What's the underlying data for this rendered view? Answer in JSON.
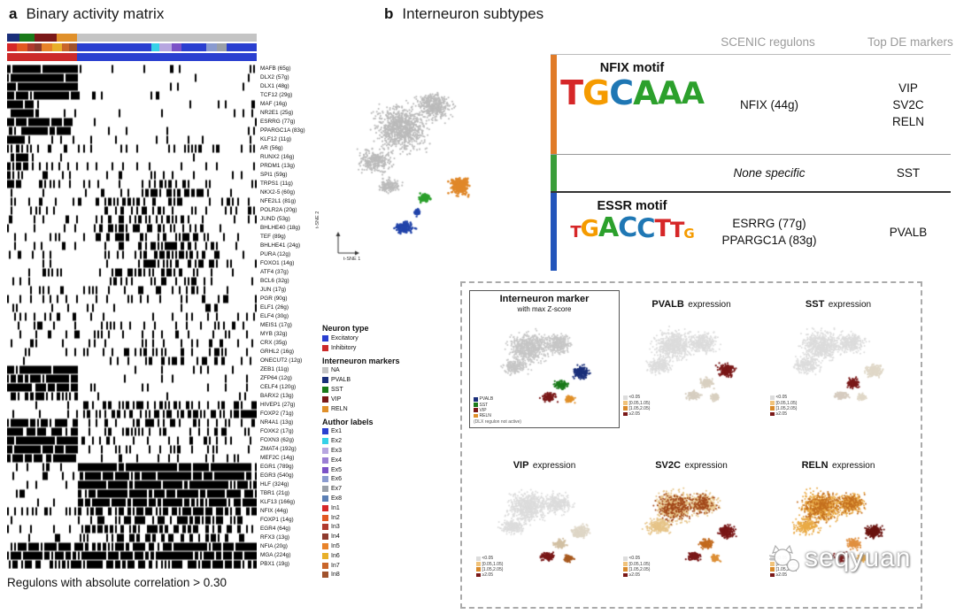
{
  "figure": {
    "watermark": "seqyuan"
  },
  "panel_a": {
    "label": "a",
    "title": "Binary activity matrix",
    "caption": "Regulons with absolute correlation > 0.30",
    "tracks": [
      {
        "name": "interneuron-markers",
        "segments": [
          [
            "#1a2f7a",
            5
          ],
          [
            "#1a7a1a",
            6
          ],
          [
            "#7a1818",
            9
          ],
          [
            "#e0902a",
            8
          ],
          [
            "#c4c4c4",
            72
          ]
        ]
      },
      {
        "name": "author-labels",
        "segments": [
          [
            "#d62728",
            4
          ],
          [
            "#e25822",
            4
          ],
          [
            "#b03a2e",
            3
          ],
          [
            "#8e3b2e",
            3
          ],
          [
            "#e8832a",
            4
          ],
          [
            "#e8b02a",
            4
          ],
          [
            "#c9652a",
            3
          ],
          [
            "#a0522d",
            3
          ],
          [
            "#2a3fd0",
            30
          ],
          [
            "#36d1e8",
            3
          ],
          [
            "#b7a6e0",
            5
          ],
          [
            "#7b52c7",
            4
          ],
          [
            "#2a3fd0",
            10
          ],
          [
            "#8a9bd0",
            4
          ],
          [
            "#9aa0a8",
            4
          ],
          [
            "#2a3fd0",
            12
          ]
        ]
      },
      {
        "name": "neuron-type",
        "segments": [
          [
            "#cc2a2a",
            28
          ],
          [
            "#2a3fd0",
            72
          ]
        ]
      }
    ],
    "rows": [
      {
        "l": "MAFB (65g)",
        "b": [
          [
            0,
            0.28,
            0.97
          ]
        ],
        "s": 0.06
      },
      {
        "l": "DLX2 (57g)",
        "b": [
          [
            0,
            0.28,
            0.97
          ]
        ],
        "s": 0.05
      },
      {
        "l": "DLX1 (48g)",
        "b": [
          [
            0,
            0.28,
            0.96
          ]
        ],
        "s": 0.05
      },
      {
        "l": "TCF12 (29g)",
        "b": [
          [
            0,
            0.28,
            0.9
          ]
        ],
        "s": 0.06
      },
      {
        "l": "MAF (16g)",
        "b": [
          [
            0,
            0.11,
            0.9
          ]
        ],
        "s": 0.05
      },
      {
        "l": "NR2E1 (25g)",
        "b": [
          [
            0,
            0.13,
            0.85
          ]
        ],
        "s": 0.06
      },
      {
        "l": "ESRRG (77g)",
        "b": [
          [
            0,
            0.26,
            0.92
          ]
        ],
        "s": 0.03
      },
      {
        "l": "PPARGC1A (83g)",
        "b": [
          [
            0,
            0.26,
            0.9
          ]
        ],
        "s": 0.03
      },
      {
        "l": "KLF12 (11g)",
        "b": [
          [
            0,
            0.07,
            0.8
          ]
        ],
        "s": 0.1
      },
      {
        "l": "AR (56g)",
        "b": [
          [
            0,
            0.1,
            0.6
          ]
        ],
        "s": 0.14
      },
      {
        "l": "RUNX2 (16g)",
        "b": [
          [
            0,
            0.08,
            0.7
          ]
        ],
        "s": 0.07
      },
      {
        "l": "PRDM1 (13g)",
        "b": [
          [
            0,
            0.08,
            0.7
          ]
        ],
        "s": 0.07
      },
      {
        "l": "SPI1 (59g)",
        "b": [
          [
            0,
            0.06,
            0.75
          ]
        ],
        "s": 0.08
      },
      {
        "l": "TRPS1 (11g)",
        "b": [
          [
            0,
            0.05,
            0.8
          ],
          [
            0.5,
            0.8,
            0.3
          ]
        ],
        "s": 0.14
      },
      {
        "l": "NKX2-5 (60g)",
        "b": [
          [
            0.45,
            0.8,
            0.4
          ]
        ],
        "s": 0.12
      },
      {
        "l": "NFE2L1 (81g)",
        "b": [
          [
            0.3,
            0.7,
            0.35
          ]
        ],
        "s": 0.15
      },
      {
        "l": "POLR2A (20g)",
        "b": [
          [
            0.3,
            0.7,
            0.3
          ]
        ],
        "s": 0.14
      },
      {
        "l": "JUND (53g)",
        "b": [
          [
            0.35,
            0.75,
            0.45
          ]
        ],
        "s": 0.12
      },
      {
        "l": "BHLHE40 (18g)",
        "b": [
          [
            0.35,
            0.75,
            0.4
          ]
        ],
        "s": 0.12
      },
      {
        "l": "TEF (89g)",
        "b": [
          [
            0.35,
            0.8,
            0.45
          ]
        ],
        "s": 0.12
      },
      {
        "l": "BHLHE41 (24g)",
        "b": [
          [
            0.5,
            0.85,
            0.5
          ]
        ],
        "s": 0.1
      },
      {
        "l": "PURA (12g)",
        "b": [
          [
            0.5,
            0.85,
            0.45
          ]
        ],
        "s": 0.1
      },
      {
        "l": "FOXO1 (14g)",
        "b": [
          [
            0.5,
            0.85,
            0.5
          ]
        ],
        "s": 0.09
      },
      {
        "l": "ATF4 (37g)",
        "b": [
          [
            0.4,
            0.8,
            0.35
          ]
        ],
        "s": 0.12
      },
      {
        "l": "BCL6 (32g)",
        "b": [
          [
            0.4,
            0.8,
            0.35
          ]
        ],
        "s": 0.11
      },
      {
        "l": "JUN (17g)",
        "b": [
          [
            0.4,
            0.8,
            0.3
          ]
        ],
        "s": 0.12
      },
      {
        "l": "PGR (90g)",
        "b": [],
        "s": 0.13
      },
      {
        "l": "ELF1 (26g)",
        "b": [],
        "s": 0.12
      },
      {
        "l": "ELF4 (30g)",
        "b": [],
        "s": 0.12
      },
      {
        "l": "MEIS1 (17g)",
        "b": [],
        "s": 0.15
      },
      {
        "l": "MYB (32g)",
        "b": [],
        "s": 0.14
      },
      {
        "l": "CRX (35g)",
        "b": [],
        "s": 0.15
      },
      {
        "l": "GRHL2 (16g)",
        "b": [
          [
            0.55,
            0.9,
            0.3
          ]
        ],
        "s": 0.1
      },
      {
        "l": "ONECUT2 (12g)",
        "b": [
          [
            0.55,
            0.9,
            0.3
          ]
        ],
        "s": 0.1
      },
      {
        "l": "ZEB1 (11g)",
        "b": [
          [
            0,
            0.28,
            0.85
          ]
        ],
        "s": 0.08
      },
      {
        "l": "ZFP64 (12g)",
        "b": [
          [
            0,
            0.28,
            0.85
          ]
        ],
        "s": 0.08
      },
      {
        "l": "CELF4 (120g)",
        "b": [
          [
            0,
            0.28,
            0.88
          ]
        ],
        "s": 0.07
      },
      {
        "l": "BARX2 (13g)",
        "b": [
          [
            0,
            0.28,
            0.6
          ]
        ],
        "s": 0.1
      },
      {
        "l": "HIVEP1 (27g)",
        "b": [
          [
            0.3,
            1,
            0.45
          ]
        ],
        "s": 0.1
      },
      {
        "l": "FOXP2 (71g)",
        "b": [
          [
            0.3,
            1,
            0.5
          ]
        ],
        "s": 0.09
      },
      {
        "l": "NR4A1 (13g)",
        "b": [
          [
            0,
            0.28,
            0.7
          ],
          [
            0.4,
            0.9,
            0.3
          ]
        ],
        "s": 0.1
      },
      {
        "l": "FOXK2 (17g)",
        "b": [
          [
            0,
            0.28,
            0.7
          ],
          [
            0.4,
            0.9,
            0.3
          ]
        ],
        "s": 0.1
      },
      {
        "l": "FOXN3 (62g)",
        "b": [
          [
            0,
            0.28,
            0.9
          ],
          [
            0.3,
            1,
            0.2
          ]
        ],
        "s": 0.08
      },
      {
        "l": "ZMAT4 (192g)",
        "b": [
          [
            0,
            0.28,
            0.9
          ],
          [
            0.3,
            1,
            0.2
          ]
        ],
        "s": 0.08
      },
      {
        "l": "MEF2C (14g)",
        "b": [
          [
            0,
            0.28,
            0.8
          ]
        ],
        "s": 0.1
      },
      {
        "l": "EGR1 (789g)",
        "b": [
          [
            0.28,
            1,
            0.93
          ],
          [
            0,
            0.28,
            0.15
          ]
        ],
        "s": 0.05
      },
      {
        "l": "EGR3 (540g)",
        "b": [
          [
            0.28,
            1,
            0.92
          ],
          [
            0,
            0.28,
            0.15
          ]
        ],
        "s": 0.05
      },
      {
        "l": "HLF (324g)",
        "b": [
          [
            0.28,
            1,
            0.9
          ],
          [
            0,
            0.28,
            0.12
          ]
        ],
        "s": 0.05
      },
      {
        "l": "TBR1 (21g)",
        "b": [
          [
            0.28,
            1,
            0.85
          ]
        ],
        "s": 0.07
      },
      {
        "l": "KLF13 (166g)",
        "b": [
          [
            0.28,
            1,
            0.85
          ]
        ],
        "s": 0.07
      },
      {
        "l": "NFIX (44g)",
        "b": [
          [
            0.28,
            1,
            0.6
          ],
          [
            0,
            0.28,
            0.3
          ]
        ],
        "s": 0.1
      },
      {
        "l": "FOXP1 (14g)",
        "b": [
          [
            0.3,
            0.95,
            0.5
          ]
        ],
        "s": 0.12
      },
      {
        "l": "EGR4 (64g)",
        "b": [
          [
            0.3,
            0.95,
            0.5
          ]
        ],
        "s": 0.11
      },
      {
        "l": "RFX3 (13g)",
        "b": [
          [
            0.3,
            0.95,
            0.45
          ]
        ],
        "s": 0.12
      },
      {
        "l": "NFIA (20g)",
        "b": [
          [
            0,
            1,
            0.75
          ]
        ],
        "s": 0.1
      },
      {
        "l": "MGA (224g)",
        "b": [
          [
            0,
            1,
            0.78
          ]
        ],
        "s": 0.1
      },
      {
        "l": "PBX1 (19g)",
        "b": [
          [
            0,
            1,
            0.7
          ]
        ],
        "s": 0.1
      }
    ]
  },
  "panel_b": {
    "label": "b",
    "title": "Interneuron subtypes",
    "tsne": {
      "xlabel": "t-SNE 1",
      "ylabel": "t-SNE 2"
    },
    "table": {
      "header_regulons": "SCENIC regulons",
      "header_markers": "Top DE markers",
      "rows": [
        {
          "bar": "#e07b28",
          "motif": "NFIX motif",
          "logo": "nfix",
          "logo_size": 38,
          "regulons": [
            "NFIX (44g)"
          ],
          "italic": false,
          "markers": [
            "VIP",
            "SV2C",
            "RELN"
          ]
        },
        {
          "bar": "#3a9e3a",
          "motif": "",
          "logo": "",
          "logo_size": 0,
          "regulons": [
            "None specific"
          ],
          "italic": true,
          "markers": [
            "SST"
          ]
        },
        {
          "bar": "#2255bb",
          "motif": "ESSR motif",
          "logo": "essr",
          "logo_size": 30,
          "regulons": [
            "ESRRG (77g)",
            "PPARGC1A (83g)"
          ],
          "italic": false,
          "markers": [
            "PVALB"
          ]
        }
      ]
    },
    "logos": {
      "nfix": [
        [
          "T",
          "#d62728",
          1
        ],
        [
          "G",
          "#f59b00",
          1
        ],
        [
          "C",
          "#1f77b4",
          1
        ],
        [
          "A",
          "#2ca02c",
          0.97
        ],
        [
          "A",
          "#2ca02c",
          0.95
        ],
        [
          "A",
          "#2ca02c",
          0.9
        ]
      ],
      "essr": [
        [
          "T",
          "#d62728",
          0.6
        ],
        [
          "G",
          "#f59b00",
          0.85
        ],
        [
          "A",
          "#2ca02c",
          1
        ],
        [
          "C",
          "#1f77b4",
          1
        ],
        [
          "C",
          "#1f77b4",
          0.95
        ],
        [
          "T",
          "#d62728",
          0.9
        ],
        [
          "T",
          "#d62728",
          0.8
        ],
        [
          "G",
          "#f59b00",
          0.5
        ]
      ]
    },
    "legend_groups": [
      {
        "id": "neuron-type",
        "title": "Neuron type",
        "items": [
          {
            "c": "#2a3fd0",
            "t": "Excitatory"
          },
          {
            "c": "#cc2a2a",
            "t": "Inhibitory"
          }
        ]
      },
      {
        "id": "interneuron-markers",
        "title": "Interneuron markers",
        "items": [
          {
            "c": "#c4c4c4",
            "t": "NA"
          },
          {
            "c": "#1a2f7a",
            "t": "PVALB"
          },
          {
            "c": "#1a7a1a",
            "t": "SST"
          },
          {
            "c": "#7a1818",
            "t": "VIP"
          },
          {
            "c": "#e0902a",
            "t": "RELN"
          }
        ]
      },
      {
        "id": "author-labels",
        "title": "Author labels",
        "items": [
          {
            "c": "#2a3fd0",
            "t": "Ex1"
          },
          {
            "c": "#36d1e8",
            "t": "Ex2"
          },
          {
            "c": "#b7a6e0",
            "t": "Ex3"
          },
          {
            "c": "#9b7fd4",
            "t": "Ex4"
          },
          {
            "c": "#7b52c7",
            "t": "Ex5"
          },
          {
            "c": "#8a9bd0",
            "t": "Ex6"
          },
          {
            "c": "#9aa0a8",
            "t": "Ex7"
          },
          {
            "c": "#5b7fb4",
            "t": "Ex8"
          },
          {
            "c": "#d62728",
            "t": "In1"
          },
          {
            "c": "#e25822",
            "t": "In2"
          },
          {
            "c": "#b03a2e",
            "t": "In3"
          },
          {
            "c": "#8e3b2e",
            "t": "In4"
          },
          {
            "c": "#e8832a",
            "t": "In5"
          },
          {
            "c": "#e8b02a",
            "t": "In6"
          },
          {
            "c": "#c9652a",
            "t": "In7"
          },
          {
            "c": "#a0522d",
            "t": "In8"
          }
        ]
      }
    ],
    "expression_panels": [
      {
        "boxed": true,
        "title": "Interneuron marker",
        "subtitle": "with max Z-score",
        "legend": [
          {
            "c": "#1a2f7a",
            "t": "PVALB"
          },
          {
            "c": "#1a7a1a",
            "t": "SST"
          },
          {
            "c": "#7a1818",
            "t": "VIP"
          },
          {
            "c": "#e0902a",
            "t": "RELN"
          }
        ],
        "note": "(DLX regulon not active)",
        "colors": {
          "base": "#c6c6c6",
          "band": "#1a2f7a",
          "mid": "#1a7a1a",
          "low": "#7a1818",
          "tiny": "#e0902a"
        }
      },
      {
        "gene": "PVALB",
        "suffix": "expression",
        "legend": [
          {
            "c": "#dcdcdc",
            "t": "<0.05"
          },
          {
            "c": "#f0c27a",
            "t": "[0.05,1.05)"
          },
          {
            "c": "#d98a2b",
            "t": "[1.05,2.05)"
          },
          {
            "c": "#7a1818",
            "t": "≥2.05"
          }
        ],
        "colors": {
          "base": "#dcdcdc",
          "band": "#7a1818",
          "mid": "#d9d0c0",
          "low": "#d6cec0",
          "tiny": "#d9d0c0"
        }
      },
      {
        "gene": "SST",
        "suffix": "expression",
        "legend": [
          {
            "c": "#dcdcdc",
            "t": "<0.05"
          },
          {
            "c": "#f0c27a",
            "t": "[0.05,1.05)"
          },
          {
            "c": "#d98a2b",
            "t": "[1.05,2.05)"
          },
          {
            "c": "#7a1818",
            "t": "≥2.05"
          }
        ],
        "colors": {
          "base": "#dcdcdc",
          "band": "#e0d8c8",
          "mid": "#7a1818",
          "low": "#d6ccc0",
          "tiny": "#e0d8c8"
        }
      },
      {
        "gene": "VIP",
        "suffix": "expression",
        "legend": [
          {
            "c": "#dcdcdc",
            "t": "<0.05"
          },
          {
            "c": "#f0c27a",
            "t": "[0.05,1.05)"
          },
          {
            "c": "#d98a2b",
            "t": "[1.05,2.05)"
          },
          {
            "c": "#7a1818",
            "t": "≥2.05"
          }
        ],
        "colors": {
          "base": "#dcdcdc",
          "band": "#ded6c6",
          "mid": "#d2c0a4",
          "low": "#7a1818",
          "tiny": "#a85a20"
        }
      },
      {
        "gene": "SV2C",
        "suffix": "expression",
        "legend": [
          {
            "c": "#dcdcdc",
            "t": "<0.05"
          },
          {
            "c": "#f0c27a",
            "t": "[0.05,1.05)"
          },
          {
            "c": "#d98a2b",
            "t": "[1.05,2.05)"
          },
          {
            "c": "#7a1818",
            "t": "≥2.05"
          }
        ],
        "colors": {
          "base": "#e6c488",
          "speckle": "#a2481a",
          "band": "#7a1818",
          "mid": "#c26a1e",
          "low": "#7a1818",
          "tiny": "#dd8f35"
        }
      },
      {
        "gene": "RELN",
        "suffix": "expression",
        "legend": [
          {
            "c": "#dcdcdc",
            "t": "<0.05"
          },
          {
            "c": "#f0c27a",
            "t": "[0.05,1.05)"
          },
          {
            "c": "#d98a2b",
            "t": "[1.05,2.05)"
          },
          {
            "c": "#7a1818",
            "t": "≥2.05"
          }
        ],
        "colors": {
          "base": "#e9aa45",
          "speckle": "#c4701f",
          "band": "#6a1410",
          "mid": "#e09040",
          "low": "#7a1818",
          "tiny": "#e8a33c"
        }
      }
    ]
  }
}
